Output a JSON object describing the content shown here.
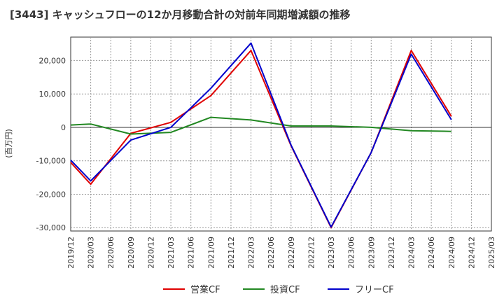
{
  "chart_data": {
    "type": "line",
    "title": "[3443]  キャッシュフローの12か月移動合計の対前年同期増減額の推移",
    "ylabel": "(百万円)",
    "xlabel": "",
    "ylim": [
      -31000,
      27000
    ],
    "yticks": [
      20000,
      10000,
      0,
      -10000,
      -20000,
      -30000
    ],
    "ytick_labels": [
      "20,000",
      "10,000",
      "0",
      "-10,000",
      "-20,000",
      "-30,000"
    ],
    "x_ticks": [
      "2019/12",
      "2020/03",
      "2020/06",
      "2020/09",
      "2020/12",
      "2021/03",
      "2021/06",
      "2021/09",
      "2021/12",
      "2022/03",
      "2022/06",
      "2022/09",
      "2022/12",
      "2023/03",
      "2023/06",
      "2023/09",
      "2023/12",
      "2024/03",
      "2024/06",
      "2024/09",
      "2024/12",
      "2025/03"
    ],
    "legend_position": "bottom",
    "grid": true,
    "series": [
      {
        "name": "営業CF",
        "color": "#e00000",
        "values": [
          -10500,
          -17000,
          null,
          -1800,
          null,
          1500,
          null,
          9500,
          null,
          23000,
          null,
          -5500,
          null,
          -30000,
          null,
          -7500,
          null,
          23000,
          null,
          3300,
          null,
          null
        ]
      },
      {
        "name": "投資CF",
        "color": "#228822",
        "values": [
          700,
          1000,
          null,
          -2000,
          null,
          -1500,
          null,
          3000,
          null,
          2200,
          null,
          400,
          null,
          400,
          null,
          0,
          null,
          -1000,
          null,
          -1200,
          null,
          null
        ]
      },
      {
        "name": "フリーCF",
        "color": "#0000cc",
        "values": [
          -9800,
          -16000,
          null,
          -3800,
          null,
          0,
          null,
          11700,
          null,
          25200,
          null,
          -5300,
          null,
          -29800,
          null,
          -7500,
          null,
          21900,
          null,
          2300,
          null,
          null
        ]
      }
    ]
  }
}
